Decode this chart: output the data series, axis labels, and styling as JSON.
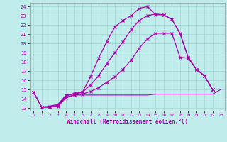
{
  "xlabel": "Windchill (Refroidissement éolien,°C)",
  "background_color": "#c0ecec",
  "grid_color": "#a0d4d4",
  "line_color": "#aa00aa",
  "xlim": [
    -0.5,
    23.5
  ],
  "ylim": [
    12.7,
    24.4
  ],
  "xticks": [
    0,
    1,
    2,
    3,
    4,
    5,
    6,
    7,
    8,
    9,
    10,
    11,
    12,
    13,
    14,
    15,
    16,
    17,
    18,
    19,
    20,
    21,
    22,
    23
  ],
  "yticks": [
    13,
    14,
    15,
    16,
    17,
    18,
    19,
    20,
    21,
    22,
    23,
    24
  ],
  "line1_x": [
    0,
    1,
    2,
    3,
    4,
    5,
    6,
    7,
    8,
    9,
    10,
    11,
    12,
    13,
    14,
    15,
    16,
    17,
    18,
    19,
    20,
    21,
    22,
    23
  ],
  "line1_y": [
    14.7,
    13.1,
    13.1,
    13.2,
    14.2,
    14.4,
    14.4,
    14.4,
    14.4,
    14.4,
    14.4,
    14.4,
    14.4,
    14.4,
    14.4,
    14.5,
    14.5,
    14.5,
    14.5,
    14.5,
    14.5,
    14.5,
    14.5,
    15.0
  ],
  "line2_x": [
    0,
    1,
    2,
    3,
    4,
    5,
    6,
    7,
    8,
    9,
    10,
    11,
    12,
    13,
    14,
    15,
    16,
    17,
    18,
    19,
    20,
    21,
    22
  ],
  "line2_y": [
    14.7,
    13.1,
    13.1,
    13.3,
    14.3,
    14.6,
    14.7,
    16.4,
    18.4,
    20.2,
    21.8,
    22.5,
    23.0,
    23.8,
    24.0,
    23.1,
    23.1,
    22.6,
    21.1,
    18.5,
    17.2,
    16.5,
    15.0
  ],
  "line3_x": [
    0,
    1,
    2,
    3,
    4,
    5,
    6,
    7,
    8,
    9,
    10,
    11,
    12,
    13,
    14,
    15,
    16,
    17,
    18,
    19,
    20,
    21,
    22
  ],
  "line3_y": [
    14.7,
    13.1,
    13.2,
    13.4,
    14.4,
    14.5,
    14.7,
    15.5,
    16.5,
    17.8,
    19.0,
    20.2,
    21.5,
    22.5,
    23.0,
    23.2,
    23.1,
    22.6,
    21.1,
    18.5,
    17.2,
    16.5,
    15.0
  ],
  "line4_x": [
    0,
    1,
    2,
    3,
    4,
    5,
    6,
    7,
    8,
    9,
    10,
    11,
    12,
    13,
    14,
    15,
    16,
    17,
    18,
    19,
    20,
    21,
    22
  ],
  "line4_y": [
    14.7,
    13.1,
    13.1,
    13.2,
    14.1,
    14.4,
    14.5,
    14.8,
    15.2,
    15.8,
    16.4,
    17.2,
    18.2,
    19.5,
    20.5,
    21.1,
    21.1,
    21.1,
    18.5,
    18.4,
    17.2,
    16.5,
    15.0
  ]
}
